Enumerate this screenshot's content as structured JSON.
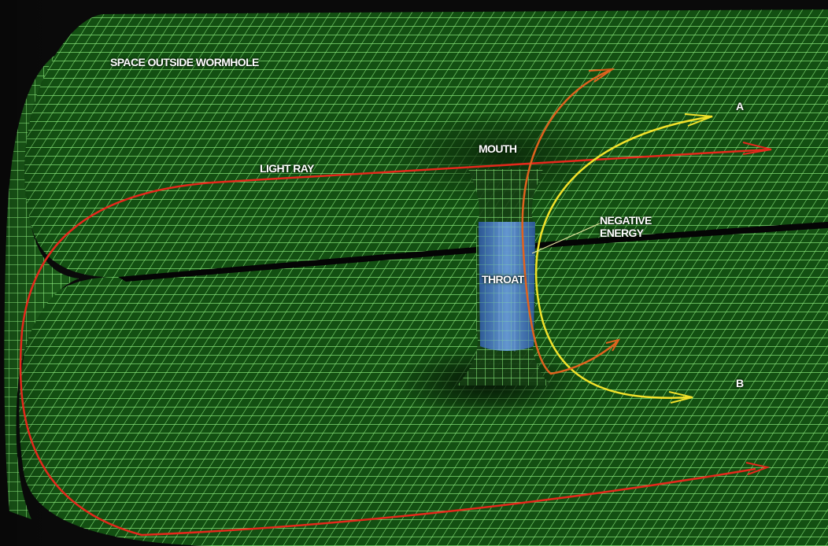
{
  "labels": {
    "space_outside": "SPACE OUTSIDE WORMHOLE",
    "light_ray": "LIGHT RAY",
    "mouth": "MOUTH",
    "negative_energy_1": "NEGATIVE",
    "negative_energy_2": "ENERGY",
    "throat": "THROAT",
    "point_a": "A",
    "point_b": "B"
  },
  "colors": {
    "background": "#0a0a0a",
    "sheet": "#134f12",
    "grid": "#8dee7e",
    "throat": "#4a7fc4",
    "light_ray": "#e5281c",
    "orange_ray": "#e0621e",
    "yellow_ray": "#f2e22a",
    "pointer": "#e6e6a0"
  }
}
